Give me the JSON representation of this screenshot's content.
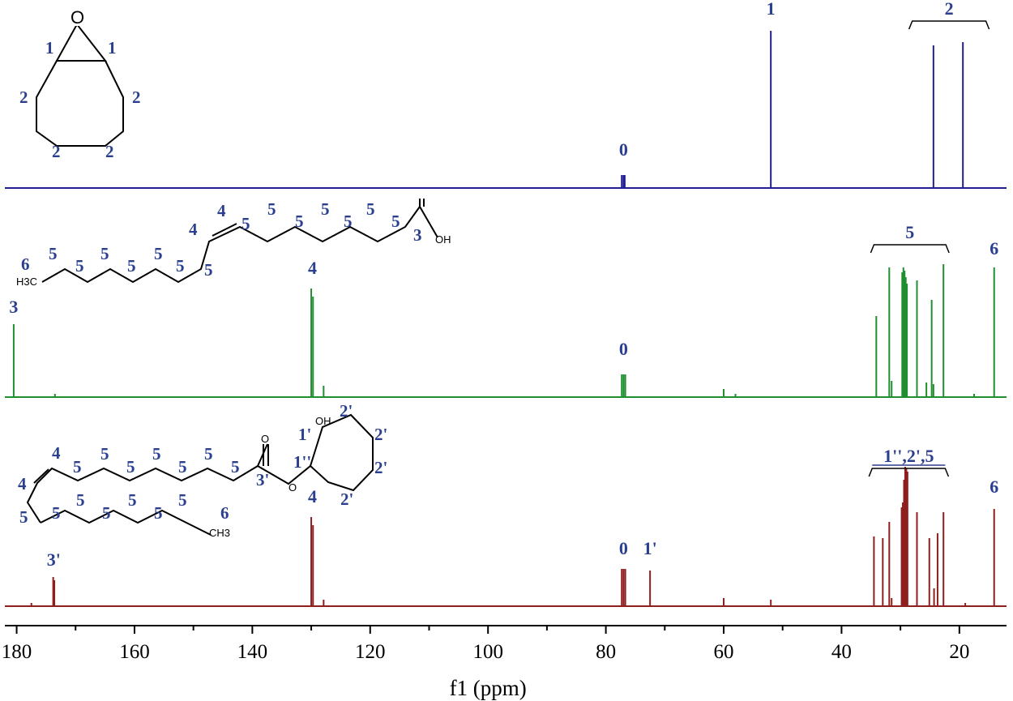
{
  "chart_data": {
    "type": "line",
    "title": "",
    "xlabel": "f1 (ppm)",
    "ylabel": "",
    "xlim": [
      182,
      12
    ],
    "x_reversed": true,
    "x_ticks": [
      180,
      160,
      140,
      120,
      100,
      80,
      60,
      40,
      20
    ],
    "x_tick_labels": [
      "180",
      "160",
      "140",
      "120",
      "100",
      "80",
      "60",
      "40",
      "20"
    ],
    "grid": false,
    "series": [
      {
        "color": "#1f1f8f",
        "peaks": [
          {
            "x": 77.3,
            "h": 0.08
          },
          {
            "x": 77.0,
            "h": 0.08
          },
          {
            "x": 76.8,
            "h": 0.08
          },
          {
            "x": 52.0,
            "h": 0.97
          },
          {
            "x": 24.4,
            "h": 0.88
          },
          {
            "x": 19.4,
            "h": 0.9
          }
        ],
        "peak_labels": [
          {
            "text": "0",
            "x": 77.0,
            "h": 0.2
          },
          {
            "text": "1",
            "x": 52.0,
            "h": 1.07
          }
        ],
        "bracket": {
          "text": "2",
          "from": 28.0,
          "to": 15.5,
          "h": 1.03
        },
        "structure_labels": [
          "O",
          "1",
          "1",
          "2",
          "2",
          "2",
          "2"
        ]
      },
      {
        "color": "#1f8f2f",
        "peaks": [
          {
            "x": 180.5,
            "h": 0.45
          },
          {
            "x": 173.5,
            "h": 0.02
          },
          {
            "x": 130.0,
            "h": 0.67
          },
          {
            "x": 129.7,
            "h": 0.62
          },
          {
            "x": 127.9,
            "h": 0.07
          },
          {
            "x": 77.3,
            "h": 0.14
          },
          {
            "x": 77.0,
            "h": 0.14
          },
          {
            "x": 76.7,
            "h": 0.14
          },
          {
            "x": 60.0,
            "h": 0.05
          },
          {
            "x": 58.0,
            "h": 0.02
          },
          {
            "x": 34.1,
            "h": 0.5
          },
          {
            "x": 31.9,
            "h": 0.8
          },
          {
            "x": 31.5,
            "h": 0.1
          },
          {
            "x": 29.7,
            "h": 0.77
          },
          {
            "x": 29.5,
            "h": 0.8
          },
          {
            "x": 29.3,
            "h": 0.78
          },
          {
            "x": 29.1,
            "h": 0.74
          },
          {
            "x": 28.9,
            "h": 0.7
          },
          {
            "x": 27.2,
            "h": 0.72
          },
          {
            "x": 25.6,
            "h": 0.09
          },
          {
            "x": 24.7,
            "h": 0.6
          },
          {
            "x": 24.4,
            "h": 0.08
          },
          {
            "x": 22.7,
            "h": 0.82
          },
          {
            "x": 17.5,
            "h": 0.02
          },
          {
            "x": 14.1,
            "h": 0.8
          }
        ],
        "peak_labels": [
          {
            "text": "3",
            "x": 180.5,
            "h": 0.52
          },
          {
            "text": "4",
            "x": 129.8,
            "h": 0.76
          },
          {
            "text": "0",
            "x": 77.0,
            "h": 0.26
          },
          {
            "text": "6",
            "x": 14.1,
            "h": 0.88
          }
        ],
        "bracket": {
          "text": "5",
          "from": 34.5,
          "to": 22.3,
          "h": 0.94
        },
        "structure_labels": [
          "4",
          "4",
          "5",
          "5",
          "5",
          "5",
          "5",
          "5",
          "5",
          "3",
          "OH",
          "6",
          "5",
          "5",
          "5",
          "5",
          "5",
          "5",
          "5",
          "H3C"
        ]
      },
      {
        "color": "#8f1f1f",
        "peaks": [
          {
            "x": 177.5,
            "h": 0.02
          },
          {
            "x": 173.8,
            "h": 0.18
          },
          {
            "x": 173.6,
            "h": 0.16
          },
          {
            "x": 130.0,
            "h": 0.55
          },
          {
            "x": 129.7,
            "h": 0.5
          },
          {
            "x": 127.9,
            "h": 0.04
          },
          {
            "x": 77.3,
            "h": 0.23
          },
          {
            "x": 77.0,
            "h": 0.23
          },
          {
            "x": 76.7,
            "h": 0.23
          },
          {
            "x": 72.5,
            "h": 0.22
          },
          {
            "x": 60.0,
            "h": 0.05
          },
          {
            "x": 52.0,
            "h": 0.04
          },
          {
            "x": 34.5,
            "h": 0.43
          },
          {
            "x": 33.0,
            "h": 0.42
          },
          {
            "x": 31.9,
            "h": 0.52
          },
          {
            "x": 31.5,
            "h": 0.05
          },
          {
            "x": 29.8,
            "h": 0.61
          },
          {
            "x": 29.6,
            "h": 0.64
          },
          {
            "x": 29.4,
            "h": 0.78
          },
          {
            "x": 29.2,
            "h": 0.86
          },
          {
            "x": 29.0,
            "h": 0.85
          },
          {
            "x": 28.8,
            "h": 0.83
          },
          {
            "x": 27.2,
            "h": 0.58
          },
          {
            "x": 25.1,
            "h": 0.42
          },
          {
            "x": 24.3,
            "h": 0.11
          },
          {
            "x": 23.7,
            "h": 0.45
          },
          {
            "x": 22.7,
            "h": 0.58
          },
          {
            "x": 19.0,
            "h": 0.02
          },
          {
            "x": 14.1,
            "h": 0.6
          }
        ],
        "peak_labels": [
          {
            "text": "3'",
            "x": 173.7,
            "h": 0.25
          },
          {
            "text": "4",
            "x": 129.8,
            "h": 0.64
          },
          {
            "text": "0",
            "x": 77.0,
            "h": 0.32
          },
          {
            "text": "1'",
            "x": 72.5,
            "h": 0.32
          },
          {
            "text": "6",
            "x": 14.1,
            "h": 0.7
          }
        ],
        "bracket": {
          "text": "1'',2',5",
          "from": 34.8,
          "to": 22.4,
          "h": 0.85
        },
        "structure_labels": [
          "4",
          "4",
          "5",
          "5",
          "5",
          "5",
          "5",
          "5",
          "5",
          "3'",
          "O",
          "O",
          "OH",
          "1'",
          "1''",
          "2'",
          "2'",
          "2'",
          "2'",
          "5",
          "5",
          "5",
          "5",
          "5",
          "5",
          "5",
          "6",
          "CH3"
        ]
      }
    ]
  }
}
